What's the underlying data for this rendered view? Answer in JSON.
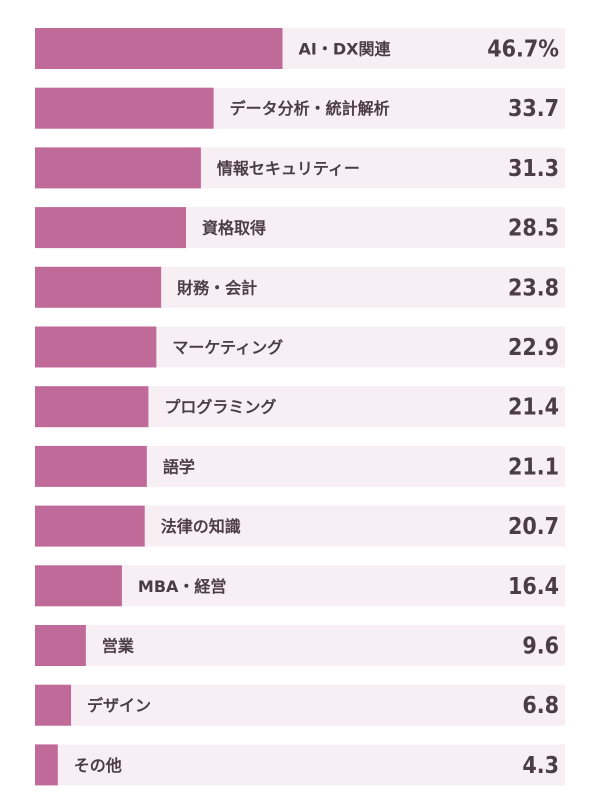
{
  "chart_data": {
    "type": "bar",
    "orientation": "horizontal",
    "categories": [
      "AI・DX関連",
      "データ分析・統計解析",
      "情報セキュリティー",
      "資格取得",
      "財務・会計",
      "マーケティング",
      "プログラミング",
      "語学",
      "法律の知識",
      "MBA・経営",
      "営業",
      "デザイン",
      "その他"
    ],
    "values": [
      46.7,
      33.7,
      31.3,
      28.5,
      23.8,
      22.9,
      21.4,
      21.1,
      20.7,
      16.4,
      9.6,
      6.8,
      4.3
    ],
    "value_labels": [
      "46.7%",
      "33.7",
      "31.3",
      "28.5",
      "23.8",
      "22.9",
      "21.4",
      "21.1",
      "20.7",
      "16.4",
      "9.6",
      "6.8",
      "4.3"
    ],
    "unit": "%",
    "title": "",
    "xlabel": "",
    "ylabel": "",
    "xlim": [
      0,
      100
    ],
    "grid": false,
    "legend": "none"
  },
  "colors": {
    "bar": "#c06a99",
    "track": "#f8eff4",
    "text": "#4a3d45"
  }
}
